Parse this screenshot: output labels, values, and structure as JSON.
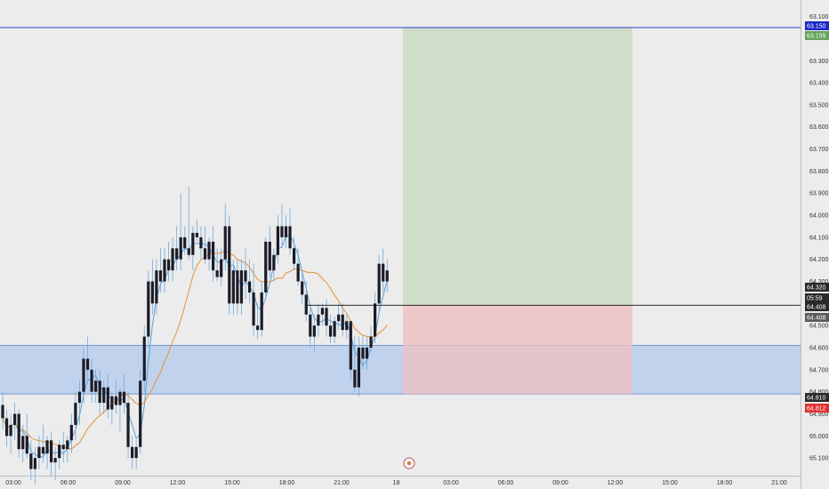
{
  "chart_data": {
    "type": "candlestick",
    "title": "",
    "xlabel": "",
    "ylabel": "",
    "y_axis_inverted": true,
    "ylim": [
      63.025,
      65.18
    ],
    "x_ticks": [
      "03:00",
      "06:00",
      "09:00",
      "12:00",
      "15:00",
      "18:00",
      "21:00",
      "18",
      "03:00",
      "06:00",
      "09:00",
      "12:00",
      "15:00",
      "18:00",
      "21:00"
    ],
    "y_ticks": [
      "63.100",
      "63.150",
      "63.300",
      "63.400",
      "63.500",
      "63.600",
      "63.700",
      "63.800",
      "63.900",
      "64.000",
      "64.100",
      "64.200",
      "64.300",
      "64.400",
      "64.500",
      "64.600",
      "64.700",
      "64.800",
      "64.900",
      "65.000",
      "65.100"
    ],
    "candles_ohlc": [
      [
        64.86,
        64.8,
        64.97,
        64.92
      ],
      [
        64.92,
        64.88,
        65.05,
        65.0
      ],
      [
        65.0,
        64.9,
        65.08,
        64.95
      ],
      [
        64.95,
        64.85,
        65.02,
        64.9
      ],
      [
        64.9,
        64.88,
        65.1,
        65.06
      ],
      [
        65.06,
        64.95,
        65.12,
        65.0
      ],
      [
        65.0,
        64.9,
        65.1,
        65.08
      ],
      [
        65.08,
        65.02,
        65.2,
        65.15
      ],
      [
        65.15,
        65.05,
        65.22,
        65.1
      ],
      [
        65.1,
        65.0,
        65.15,
        65.05
      ],
      [
        65.05,
        64.95,
        65.12,
        65.08
      ],
      [
        65.08,
        65.0,
        65.15,
        65.02
      ],
      [
        65.02,
        64.98,
        65.18,
        65.12
      ],
      [
        65.12,
        65.05,
        65.2,
        65.1
      ],
      [
        65.1,
        65.02,
        65.15,
        65.04
      ],
      [
        65.04,
        64.98,
        65.12,
        65.06
      ],
      [
        65.06,
        65.0,
        65.12,
        65.02
      ],
      [
        65.02,
        64.9,
        65.08,
        64.95
      ],
      [
        64.95,
        64.8,
        65.02,
        64.85
      ],
      [
        64.85,
        64.75,
        64.95,
        64.8
      ],
      [
        64.8,
        64.6,
        64.85,
        64.65
      ],
      [
        64.65,
        64.55,
        64.75,
        64.7
      ],
      [
        64.7,
        64.65,
        64.85,
        64.8
      ],
      [
        64.8,
        64.7,
        64.85,
        64.75
      ],
      [
        64.75,
        64.7,
        64.9,
        64.85
      ],
      [
        64.85,
        64.75,
        64.9,
        64.78
      ],
      [
        64.78,
        64.72,
        64.92,
        64.88
      ],
      [
        64.88,
        64.8,
        64.95,
        64.82
      ],
      [
        64.82,
        64.75,
        64.9,
        64.86
      ],
      [
        64.86,
        64.78,
        64.98,
        64.8
      ],
      [
        64.8,
        64.72,
        64.9,
        64.85
      ],
      [
        64.85,
        64.8,
        65.1,
        65.05
      ],
      [
        65.05,
        65.0,
        65.15,
        65.1
      ],
      [
        65.1,
        65.02,
        65.15,
        65.05
      ],
      [
        65.05,
        64.7,
        65.08,
        64.75
      ],
      [
        64.75,
        64.5,
        64.8,
        64.55
      ],
      [
        64.55,
        64.25,
        64.6,
        64.3
      ],
      [
        64.3,
        64.2,
        64.45,
        64.4
      ],
      [
        64.4,
        64.2,
        64.45,
        64.25
      ],
      [
        64.25,
        64.15,
        64.35,
        64.3
      ],
      [
        64.3,
        64.15,
        64.35,
        64.2
      ],
      [
        64.2,
        64.12,
        64.3,
        64.25
      ],
      [
        64.25,
        64.1,
        64.3,
        64.15
      ],
      [
        64.15,
        64.05,
        64.25,
        64.2
      ],
      [
        64.2,
        63.9,
        64.25,
        64.1
      ],
      [
        64.1,
        64.05,
        64.18,
        64.15
      ],
      [
        64.15,
        63.87,
        64.2,
        64.18
      ],
      [
        64.18,
        64.05,
        64.25,
        64.08
      ],
      [
        64.08,
        64.02,
        64.12,
        64.1
      ],
      [
        64.1,
        64.05,
        64.2,
        64.15
      ],
      [
        64.15,
        64.05,
        64.22,
        64.2
      ],
      [
        64.2,
        64.1,
        64.25,
        64.12
      ],
      [
        64.12,
        64.05,
        64.3,
        64.25
      ],
      [
        64.25,
        64.15,
        64.3,
        64.28
      ],
      [
        64.28,
        64.15,
        64.32,
        64.2
      ],
      [
        64.2,
        63.95,
        64.25,
        64.05
      ],
      [
        64.05,
        64.0,
        64.45,
        64.4
      ],
      [
        64.4,
        64.2,
        64.45,
        64.25
      ],
      [
        64.25,
        64.2,
        64.45,
        64.4
      ],
      [
        64.4,
        64.2,
        64.45,
        64.25
      ],
      [
        64.25,
        64.15,
        64.38,
        64.3
      ],
      [
        64.3,
        64.2,
        64.4,
        64.35
      ],
      [
        64.35,
        64.22,
        64.55,
        64.5
      ],
      [
        64.5,
        64.4,
        64.56,
        64.52
      ],
      [
        64.52,
        64.3,
        64.55,
        64.35
      ],
      [
        64.35,
        64.1,
        64.38,
        64.12
      ],
      [
        64.12,
        64.05,
        64.28,
        64.25
      ],
      [
        64.25,
        64.15,
        64.3,
        64.18
      ],
      [
        64.18,
        64.0,
        64.22,
        64.05
      ],
      [
        64.05,
        63.95,
        64.15,
        64.1
      ],
      [
        64.1,
        64.0,
        64.15,
        64.05
      ],
      [
        64.05,
        63.97,
        64.18,
        64.15
      ],
      [
        64.15,
        64.1,
        64.25,
        64.22
      ],
      [
        64.22,
        64.15,
        64.32,
        64.3
      ],
      [
        64.3,
        64.25,
        64.4,
        64.36
      ],
      [
        64.36,
        64.3,
        64.48,
        64.45
      ],
      [
        64.45,
        64.4,
        64.6,
        64.55
      ],
      [
        64.55,
        64.45,
        64.62,
        64.5
      ],
      [
        64.5,
        64.4,
        64.55,
        64.45
      ],
      [
        64.45,
        64.4,
        64.5,
        64.42
      ],
      [
        64.42,
        64.38,
        64.55,
        64.5
      ],
      [
        64.5,
        64.45,
        64.58,
        64.55
      ],
      [
        64.55,
        64.46,
        64.58,
        64.48
      ],
      [
        64.48,
        64.4,
        64.52,
        64.45
      ],
      [
        64.45,
        64.4,
        64.55,
        64.52
      ],
      [
        64.52,
        64.45,
        64.56,
        64.48
      ],
      [
        64.48,
        64.55,
        64.75,
        64.7
      ],
      [
        64.7,
        64.55,
        64.8,
        64.78
      ],
      [
        64.78,
        64.55,
        64.82,
        64.6
      ],
      [
        64.6,
        64.55,
        64.7,
        64.65
      ],
      [
        64.65,
        64.55,
        64.7,
        64.6
      ],
      [
        64.6,
        64.5,
        64.62,
        64.55
      ],
      [
        64.55,
        64.35,
        64.58,
        64.4
      ],
      [
        64.4,
        64.18,
        64.45,
        64.22
      ],
      [
        64.22,
        64.15,
        64.35,
        64.3
      ],
      [
        64.3,
        64.2,
        64.35,
        64.25
      ]
    ],
    "moving_averages": [
      {
        "name": "",
        "color": "#5aa0d8"
      },
      {
        "name": "",
        "color": "#e69138"
      }
    ],
    "horizontal_lines": [
      63.15,
      64.408
    ],
    "demand_zone": [
      64.59,
      64.81
    ],
    "position": {
      "entry": 64.408,
      "target": 63.15,
      "stop": 64.81,
      "start_label": "21:00",
      "end_label": "12:00"
    },
    "price_badges": [
      {
        "text": "63.150",
        "color": "#1b27c9"
      },
      {
        "text": "63.155",
        "color": "#66a35a"
      },
      {
        "text": "64.320",
        "color": "#2a2a2a"
      },
      {
        "text": "05:59",
        "color": "#2a2a2a"
      },
      {
        "text": "64.408",
        "color": "#2a2a2a"
      },
      {
        "text": "64.408",
        "color": "#5a5a5a"
      },
      {
        "text": "64.810",
        "color": "#2a2a2a"
      },
      {
        "text": "64.812",
        "color": "#e03030"
      }
    ],
    "colors": {
      "background": "#ececec",
      "candle": "#1c1c28",
      "wick": "#6fa8dc",
      "zone_blue": "#bcd0ec",
      "profit": "#cfdcc6",
      "loss": "#edc1c3"
    }
  }
}
